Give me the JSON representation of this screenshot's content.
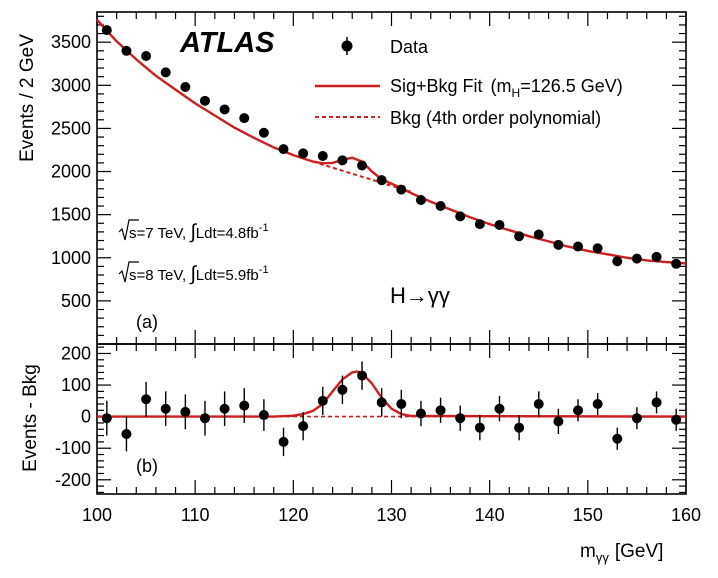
{
  "chart_data": [
    {
      "type": "scatter",
      "panel_tag": "(a)",
      "ylabel": "Events / 2 GeV",
      "xlabel": "m",
      "xlabel_sub": "γγ",
      "xlabel_unit": "[GeV]",
      "xlim": [
        100,
        160
      ],
      "ylim": [
        0,
        3850
      ],
      "yticks": [
        500,
        1000,
        1500,
        2000,
        2500,
        3000,
        3500
      ],
      "xticks": [
        100,
        110,
        120,
        130,
        140,
        150,
        160
      ],
      "experiment": "ATLAS",
      "channel": "H→γγ",
      "info_lines": [
        {
          "sqrt": "s",
          "rest": "=7 TeV, ",
          "integral": "∫",
          "ldt": "Ldt=4.8fb",
          "sup": "-1"
        },
        {
          "sqrt": "s",
          "rest": "=8 TeV, ",
          "integral": "∫",
          "ldt": "Ldt=5.9fb",
          "sup": "-1"
        }
      ],
      "legend": {
        "placement": "top-right",
        "data_label": "Data",
        "fit_label": "Sig+Bkg Fit",
        "fit_param_open": "(m",
        "fit_param_sub": "H",
        "fit_param_close": "=126.5 GeV)",
        "bkg_label": "Bkg (4th order polynomial)"
      },
      "series": [
        {
          "role": "data",
          "x": [
            101,
            103,
            105,
            107,
            109,
            111,
            113,
            115,
            117,
            119,
            121,
            123,
            125,
            127,
            129,
            131,
            133,
            135,
            137,
            139,
            141,
            143,
            145,
            147,
            149,
            151,
            153,
            155,
            157,
            159
          ],
          "y": [
            3640,
            3400,
            3340,
            3150,
            2980,
            2820,
            2720,
            2620,
            2450,
            2260,
            2210,
            2180,
            2130,
            2070,
            1900,
            1790,
            1670,
            1600,
            1480,
            1390,
            1380,
            1250,
            1270,
            1150,
            1130,
            1110,
            960,
            990,
            1010,
            930
          ]
        },
        {
          "role": "sig_bkg_fit",
          "x": [
            100,
            102,
            104,
            106,
            108,
            110,
            112,
            114,
            116,
            118,
            120,
            122,
            123,
            124,
            125,
            126,
            127,
            128,
            129,
            130,
            132,
            134,
            136,
            138,
            140,
            142,
            144,
            146,
            148,
            150,
            152,
            154,
            156,
            158,
            160
          ],
          "y": [
            3760,
            3510,
            3300,
            3110,
            2950,
            2790,
            2650,
            2510,
            2390,
            2280,
            2190,
            2115,
            2095,
            2100,
            2135,
            2160,
            2115,
            2000,
            1910,
            1860,
            1750,
            1650,
            1560,
            1470,
            1390,
            1320,
            1250,
            1190,
            1130,
            1080,
            1040,
            1000,
            970,
            950,
            935
          ]
        },
        {
          "role": "bkg",
          "x": [
            122,
            124,
            126,
            128,
            130,
            132
          ],
          "y": [
            2115,
            2045,
            1975,
            1905,
            1835,
            1765
          ]
        }
      ]
    },
    {
      "type": "scatter",
      "panel_tag": "(b)",
      "ylabel": "Events - Bkg",
      "xlim": [
        100,
        160
      ],
      "ylim": [
        -245,
        230
      ],
      "yticks": [
        -200,
        -100,
        0,
        100,
        200
      ],
      "series": [
        {
          "role": "residual",
          "x": [
            101,
            103,
            105,
            107,
            109,
            111,
            113,
            115,
            117,
            119,
            121,
            123,
            125,
            127,
            129,
            131,
            133,
            135,
            137,
            139,
            141,
            143,
            145,
            147,
            149,
            151,
            153,
            155,
            157,
            159
          ],
          "y": [
            -5,
            -55,
            55,
            25,
            15,
            -5,
            25,
            35,
            5,
            -80,
            -30,
            50,
            85,
            130,
            45,
            40,
            10,
            20,
            -5,
            -35,
            25,
            -35,
            40,
            -15,
            20,
            40,
            -70,
            -5,
            45,
            -10
          ],
          "err": [
            55,
            55,
            55,
            55,
            55,
            55,
            55,
            55,
            50,
            45,
            45,
            45,
            45,
            45,
            45,
            45,
            40,
            40,
            40,
            40,
            40,
            40,
            40,
            40,
            35,
            35,
            35,
            35,
            35,
            35
          ]
        },
        {
          "role": "signal_fit",
          "x": [
            100,
            118,
            120,
            121,
            122,
            123,
            124,
            125,
            126,
            126.5,
            127,
            128,
            129,
            130,
            131,
            132,
            160
          ],
          "y": [
            0,
            0,
            3,
            8,
            18,
            40,
            80,
            118,
            140,
            143,
            138,
            105,
            60,
            25,
            8,
            2,
            0
          ]
        },
        {
          "role": "zero_line",
          "x": [
            100,
            160
          ],
          "y": [
            0,
            0
          ]
        }
      ]
    }
  ]
}
